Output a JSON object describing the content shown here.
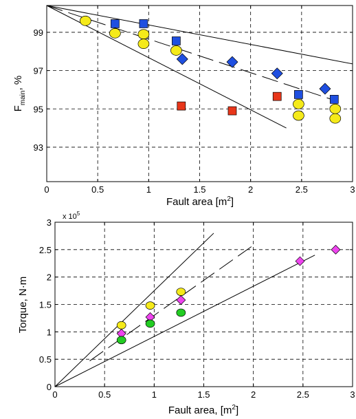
{
  "chart_data": [
    {
      "type": "scatter",
      "xlabel": "Fault area [m",
      "xlabel_sup": "2",
      "xlabel_end": "]",
      "ylabel_main": "F",
      "ylabel_sub": "main",
      "ylabel_end": ", %",
      "xlim": [
        0,
        3
      ],
      "ylim": [
        91.2,
        100.4
      ],
      "xticks": [
        0,
        0.5,
        1,
        1.5,
        2,
        2.5,
        3
      ],
      "xtick_labels": [
        "0",
        "0.5",
        "1",
        "1.5",
        "2",
        "2.5",
        "3"
      ],
      "yticks": [
        93,
        95,
        97,
        99
      ],
      "ytick_labels": [
        "93",
        "95",
        "97",
        "99"
      ],
      "grid": true,
      "series": [
        {
          "marker": "square",
          "color": "#1f4fe0",
          "x": [
            0.67,
            0.95,
            1.27,
            2.47,
            2.82
          ],
          "y": [
            99.45,
            99.45,
            98.55,
            95.75,
            95.5
          ]
        },
        {
          "marker": "square",
          "color": "#e8361a",
          "x": [
            1.32,
            1.82,
            2.26
          ],
          "y": [
            95.15,
            94.9,
            95.65
          ]
        },
        {
          "marker": "diamond",
          "color": "#1f4fe0",
          "x": [
            1.33,
            1.82,
            2.26,
            2.73
          ],
          "y": [
            97.6,
            97.45,
            96.85,
            96.05
          ]
        },
        {
          "marker": "circle",
          "color": "#f5ea1a",
          "x": [
            0.38,
            0.67,
            0.95,
            0.95,
            1.27,
            2.47,
            2.47,
            2.83,
            2.83
          ],
          "y": [
            99.6,
            98.95,
            98.9,
            98.4,
            98.05,
            95.25,
            94.65,
            95.0,
            94.5
          ]
        }
      ],
      "lines": [
        {
          "style": "solid",
          "x": [
            0,
            3
          ],
          "y": [
            100.4,
            97.35
          ]
        },
        {
          "style": "solid",
          "x": [
            0,
            2.35
          ],
          "y": [
            100.4,
            94.0
          ]
        },
        {
          "style": "dashed",
          "x": [
            0,
            2.85
          ],
          "y": [
            100.4,
            95.4
          ]
        }
      ]
    },
    {
      "type": "scatter",
      "xlabel": "Fault area, [m",
      "xlabel_sup": "2",
      "xlabel_end": "]",
      "ylabel": "Torque, N·m",
      "scale_label": "x 10",
      "scale_exp": "5",
      "xlim": [
        0,
        3
      ],
      "ylim": [
        0,
        3
      ],
      "xticks": [
        0,
        0.5,
        1,
        1.5,
        2,
        2.5,
        3
      ],
      "xtick_labels": [
        "0",
        "0.5",
        "1",
        "1.5",
        "2",
        "2.5",
        "3"
      ],
      "yticks": [
        0,
        0.5,
        1,
        1.5,
        2,
        2.5,
        3
      ],
      "ytick_labels": [
        "0",
        "0.5",
        "1",
        "1.5",
        "2",
        "2.5",
        "3"
      ],
      "grid": true,
      "series": [
        {
          "marker": "circle",
          "color": "#f5ea1a",
          "x": [
            0.67,
            0.96,
            1.27
          ],
          "y": [
            1.12,
            1.48,
            1.73
          ]
        },
        {
          "marker": "diamond",
          "color": "#ee44ee",
          "x": [
            0.67,
            0.96,
            1.27,
            2.47,
            2.83
          ],
          "y": [
            0.97,
            1.27,
            1.58,
            2.29,
            2.5
          ]
        },
        {
          "marker": "circle",
          "color": "#22cc22",
          "x": [
            0.67,
            0.96,
            1.27
          ],
          "y": [
            0.85,
            1.15,
            1.35
          ]
        }
      ],
      "lines": [
        {
          "style": "solid",
          "x": [
            0,
            1.6
          ],
          "y": [
            0,
            2.8
          ]
        },
        {
          "style": "solid",
          "x": [
            0,
            2.62
          ],
          "y": [
            0,
            2.4
          ]
        },
        {
          "style": "dashed",
          "x": [
            0.35,
            2.0
          ],
          "y": [
            0.47,
            2.58
          ]
        }
      ]
    }
  ]
}
